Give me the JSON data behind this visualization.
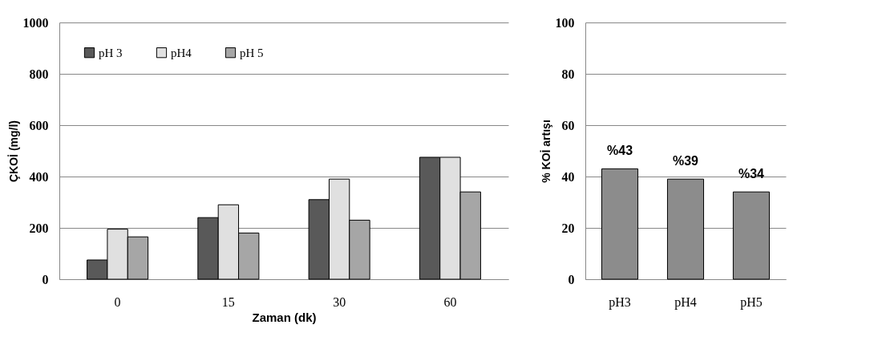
{
  "chart_data": [
    {
      "type": "bar",
      "xlabel": "Zaman (dk)",
      "ylabel": "ÇKOİ (mg/l)",
      "categories": [
        "0",
        "15",
        "30",
        "60"
      ],
      "series": [
        {
          "name": "pH 3",
          "color": "#595959",
          "values": [
            75,
            240,
            310,
            475
          ]
        },
        {
          "name": "pH4",
          "color": "#e0e0e0",
          "values": [
            195,
            290,
            390,
            475
          ]
        },
        {
          "name": "pH 5",
          "color": "#a6a6a6",
          "values": [
            165,
            180,
            230,
            340
          ]
        }
      ],
      "ylim": [
        0,
        1000
      ],
      "yticks": [
        0,
        200,
        400,
        600,
        800,
        1000
      ],
      "grid": "y",
      "legend": "top left"
    },
    {
      "type": "bar",
      "ylabel": "% KOİ artışı",
      "categories": [
        "pH3",
        "pH4",
        "pH5"
      ],
      "series": [
        {
          "color": "#8c8c8c",
          "values": [
            43,
            39,
            34
          ],
          "value_labels": [
            "%43",
            "%39",
            "%34"
          ]
        }
      ],
      "ylim": [
        0,
        100
      ],
      "yticks": [
        0,
        20,
        40,
        60,
        80,
        100
      ],
      "grid": "y"
    }
  ]
}
